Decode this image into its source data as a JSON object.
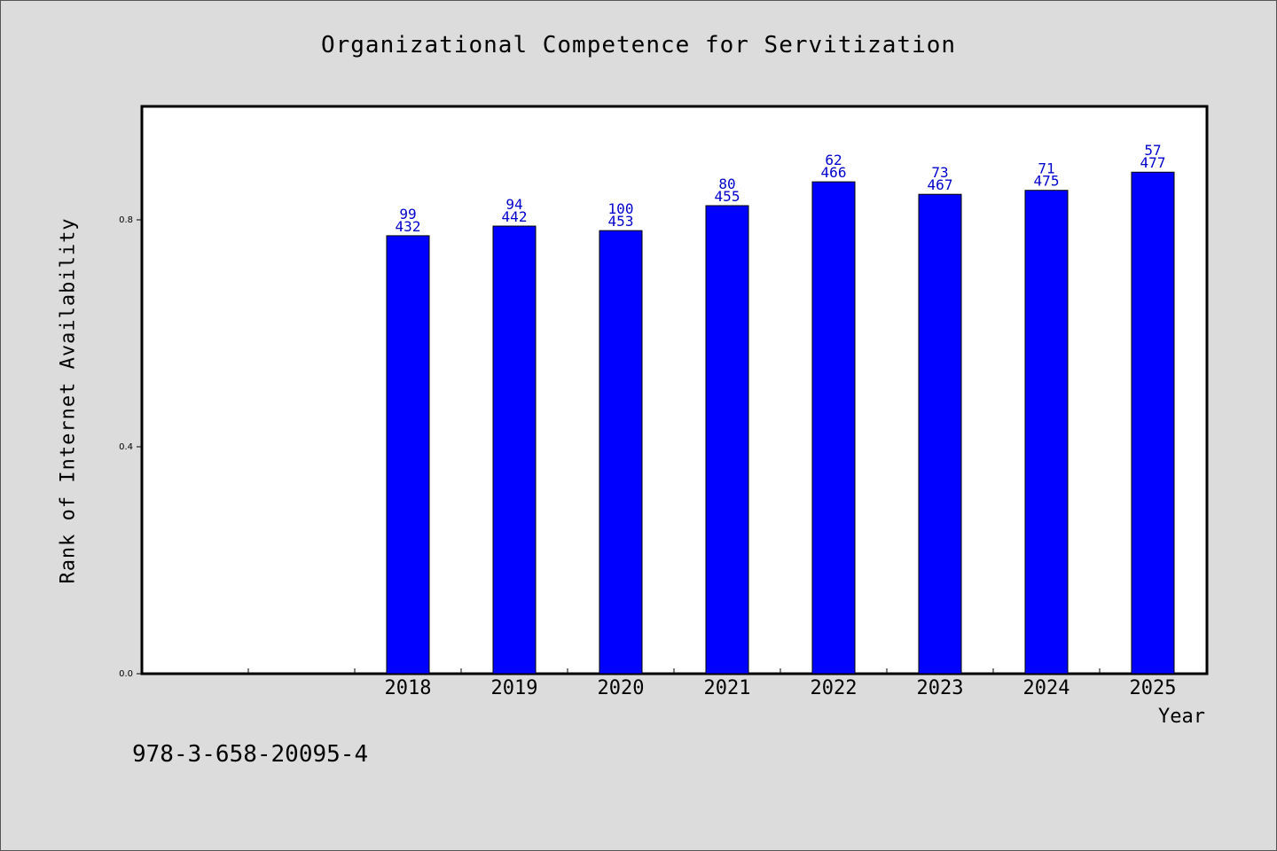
{
  "chart_data": {
    "type": "bar",
    "title": "Organizational Competence for Servitization",
    "xlabel": "Year",
    "ylabel": "Rank of Internet Availability",
    "footer": "978-3-658-20095-4",
    "categories": [
      "2018",
      "2019",
      "2020",
      "2021",
      "2022",
      "2023",
      "2024",
      "2025"
    ],
    "values": [
      0.772,
      0.789,
      0.781,
      0.825,
      0.867,
      0.845,
      0.852,
      0.884
    ],
    "labels_top": [
      "99",
      "94",
      "100",
      "80",
      "62",
      "73",
      "71",
      "57"
    ],
    "labels_bottom": [
      "432",
      "442",
      "453",
      "455",
      "466",
      "467",
      "475",
      "477"
    ],
    "yticks": [
      "0.0",
      "0.4",
      "0.8"
    ],
    "ytick_values": [
      0.0,
      0.4,
      0.8
    ],
    "ylim": [
      0,
      1.0
    ],
    "grid": false,
    "colors": {
      "bar": "#0000ff",
      "bar_edge": "#000000",
      "label": "#0000cc",
      "plot_bg": "#ffffff",
      "page_bg": "#dcdcdc"
    }
  }
}
